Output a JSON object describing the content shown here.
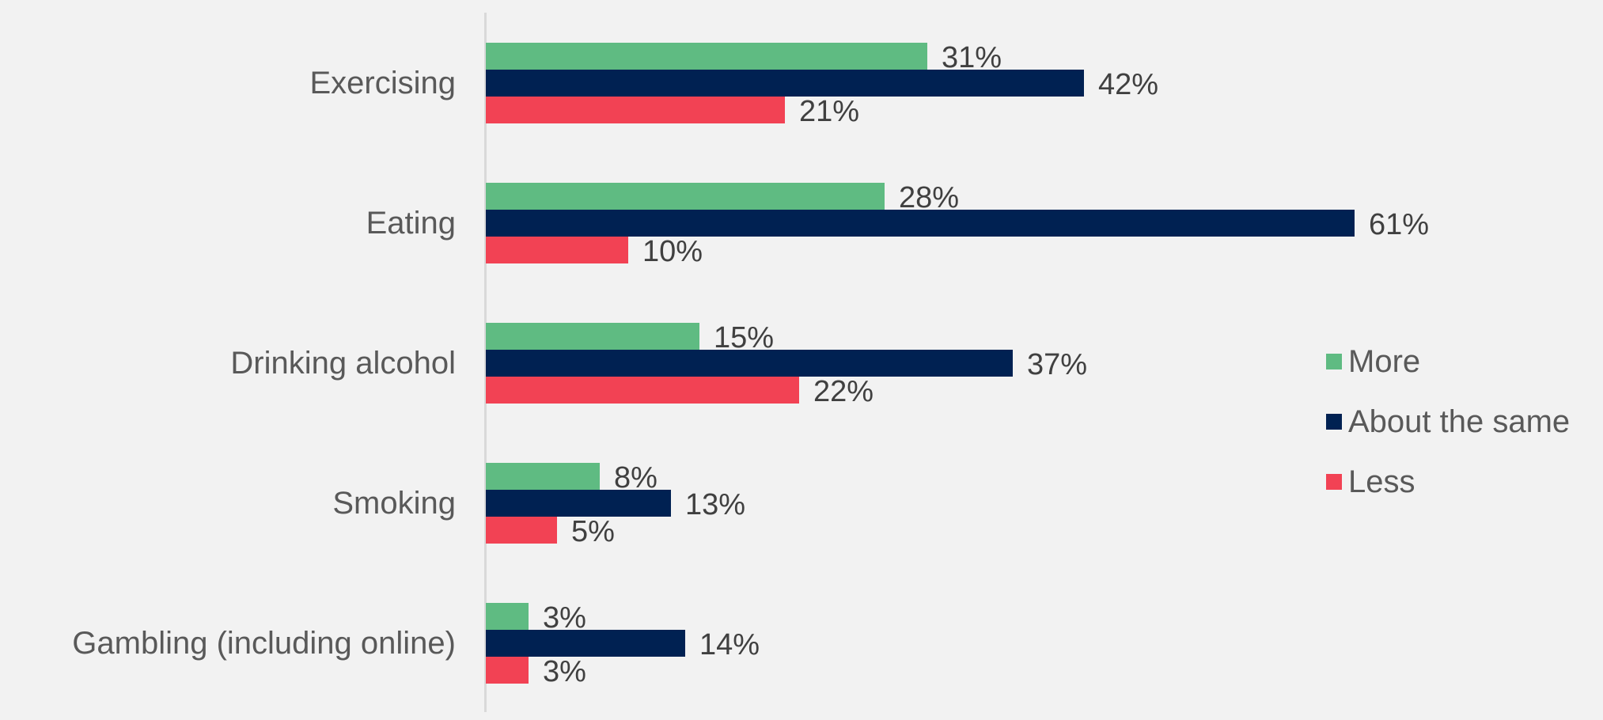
{
  "chart_data": {
    "type": "bar",
    "orientation": "horizontal",
    "title": "",
    "xlabel": "",
    "ylabel": "",
    "xlim": [
      0,
      65
    ],
    "grid": false,
    "legend_position": "right",
    "categories": [
      "Exercising",
      "Eating",
      "Drinking alcohol",
      "Smoking",
      "Gambling (including online)"
    ],
    "series": [
      {
        "name": "More",
        "color": "#5fbb82",
        "values": [
          31,
          28,
          15,
          8,
          3
        ],
        "labels": [
          "31%",
          "28%",
          "15%",
          "8%",
          "3%"
        ]
      },
      {
        "name": "About the same",
        "color": "#002152",
        "values": [
          42,
          61,
          37,
          13,
          14
        ],
        "labels": [
          "42%",
          "61%",
          "37%",
          "13%",
          "14%"
        ]
      },
      {
        "name": "Less",
        "color": "#f24254",
        "values": [
          21,
          10,
          22,
          5,
          3
        ],
        "labels": [
          "21%",
          "10%",
          "22%",
          "5%",
          "3%"
        ]
      }
    ]
  }
}
